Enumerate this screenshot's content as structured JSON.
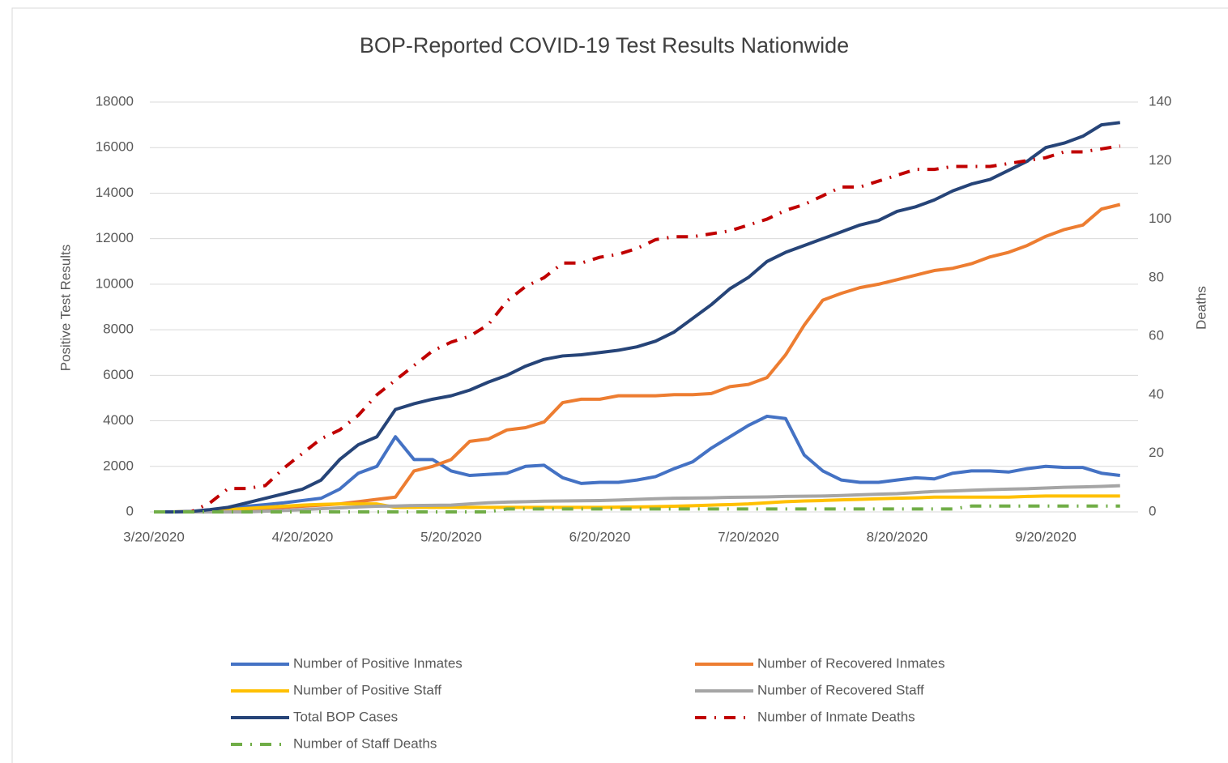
{
  "chart_data": {
    "type": "line",
    "title": "BOP-Reported COVID-19 Test Results Nationwide",
    "y_label": "Positive Test Results",
    "y2_label": "Deaths",
    "categories": [
      "3/20/2020",
      null,
      null,
      null,
      null,
      null,
      null,
      null,
      "4/20/2020",
      null,
      null,
      null,
      null,
      null,
      null,
      null,
      "5/20/2020",
      null,
      null,
      null,
      null,
      null,
      null,
      null,
      "6/20/2020",
      null,
      null,
      null,
      null,
      null,
      null,
      null,
      "7/20/2020",
      null,
      null,
      null,
      null,
      null,
      null,
      null,
      "8/20/2020",
      null,
      null,
      null,
      null,
      null,
      null,
      null,
      "9/20/2020",
      null,
      null,
      null,
      null
    ],
    "ylim": [
      0,
      18000
    ],
    "yticks": [
      0,
      2000,
      4000,
      6000,
      8000,
      10000,
      12000,
      14000,
      16000,
      18000
    ],
    "y2lim": [
      0,
      140
    ],
    "y2ticks": [
      0,
      20,
      40,
      60,
      80,
      100,
      120,
      140
    ],
    "grid": true,
    "series": [
      {
        "name": "Number of Positive Inmates",
        "color": "#4472c4",
        "line_style": "solid",
        "values": [
          0,
          0,
          10,
          80,
          150,
          250,
          320,
          400,
          500,
          600,
          1000,
          1700,
          2000,
          3300,
          2300,
          2300,
          1800,
          1600,
          1650,
          1700,
          2000,
          2050,
          1500,
          1250,
          1300,
          1300,
          1400,
          1550,
          1900,
          2200,
          2800,
          3300,
          3800,
          4200,
          4100,
          2500,
          1800,
          1400,
          1300,
          1300,
          1400,
          1500,
          1450,
          1700,
          1800,
          1800,
          1750,
          1900,
          2000,
          1950,
          1950,
          1700,
          1600
        ]
      },
      {
        "name": "Number of Recovered Inmates",
        "color": "#ed7d31",
        "line_style": "solid",
        "values": [
          0,
          0,
          0,
          10,
          20,
          50,
          100,
          200,
          250,
          300,
          350,
          450,
          550,
          650,
          1800,
          2000,
          2300,
          3100,
          3200,
          3600,
          3700,
          3950,
          4800,
          4950,
          4950,
          5100,
          5100,
          5100,
          5150,
          5150,
          5200,
          5500,
          5600,
          5900,
          6900,
          8200,
          9300,
          9600,
          9850,
          10000,
          10200,
          10400,
          10600,
          10700,
          10900,
          11200,
          11400,
          11700,
          12100,
          12400,
          12600,
          13300,
          13500
        ]
      },
      {
        "name": "Number of Positive Staff",
        "color": "#ffc000",
        "line_style": "solid",
        "values": [
          0,
          0,
          20,
          50,
          100,
          150,
          200,
          250,
          300,
          330,
          350,
          350,
          350,
          200,
          200,
          200,
          200,
          200,
          200,
          200,
          200,
          200,
          200,
          200,
          200,
          210,
          220,
          230,
          250,
          270,
          300,
          320,
          350,
          400,
          450,
          480,
          500,
          530,
          550,
          580,
          600,
          620,
          650,
          650,
          650,
          650,
          650,
          680,
          700,
          700,
          700,
          700,
          700
        ]
      },
      {
        "name": "Number of Recovered Staff",
        "color": "#a5a5a5",
        "line_style": "solid",
        "values": [
          0,
          0,
          0,
          0,
          0,
          0,
          30,
          60,
          100,
          140,
          180,
          220,
          250,
          260,
          280,
          290,
          300,
          350,
          400,
          430,
          450,
          470,
          480,
          490,
          500,
          520,
          550,
          580,
          600,
          610,
          620,
          640,
          650,
          660,
          680,
          690,
          700,
          720,
          750,
          780,
          800,
          850,
          900,
          920,
          950,
          980,
          1000,
          1020,
          1050,
          1080,
          1100,
          1120,
          1150
        ]
      },
      {
        "name": "Total BOP Cases",
        "color": "#264478",
        "line_style": "solid",
        "values": [
          0,
          0,
          20,
          100,
          200,
          400,
          600,
          800,
          1000,
          1400,
          2300,
          2950,
          3300,
          4500,
          4750,
          4950,
          5100,
          5350,
          5700,
          6000,
          6400,
          6700,
          6850,
          6900,
          7000,
          7100,
          7250,
          7500,
          7900,
          8500,
          9100,
          9800,
          10300,
          11000,
          11400,
          11700,
          12000,
          12300,
          12600,
          12800,
          13200,
          13400,
          13700,
          14100,
          14400,
          14600,
          15000,
          15400,
          16000,
          16200,
          16500,
          17000,
          17100
        ]
      },
      {
        "name": "Number of Inmate Deaths",
        "color": "#c00000",
        "line_style": "dashdot",
        "axis": "y2",
        "values": [
          0,
          0,
          0,
          3,
          8,
          8,
          9,
          15,
          20,
          25,
          28,
          33,
          40,
          45,
          50,
          55,
          58,
          60,
          64,
          72,
          77,
          80,
          85,
          85,
          87,
          88,
          90,
          93,
          94,
          94,
          95,
          96,
          98,
          100,
          103,
          105,
          108,
          111,
          111,
          113,
          115,
          117,
          117,
          118,
          118,
          118,
          119,
          120,
          121,
          123,
          123,
          124,
          125
        ]
      },
      {
        "name": "Number of Staff Deaths",
        "color": "#70ad47",
        "line_style": "dashdot",
        "axis": "y2",
        "values": [
          0,
          0,
          0,
          0,
          0,
          0,
          0,
          0,
          0,
          0,
          0,
          0,
          0,
          0,
          0,
          0,
          0,
          0,
          0,
          1,
          1,
          1,
          1,
          1,
          1,
          1,
          1,
          1,
          1,
          1,
          1,
          1,
          1,
          1,
          1,
          1,
          1,
          1,
          1,
          1,
          1,
          1,
          1,
          1,
          2,
          2,
          2,
          2,
          2,
          2,
          2,
          2,
          2
        ]
      }
    ]
  }
}
